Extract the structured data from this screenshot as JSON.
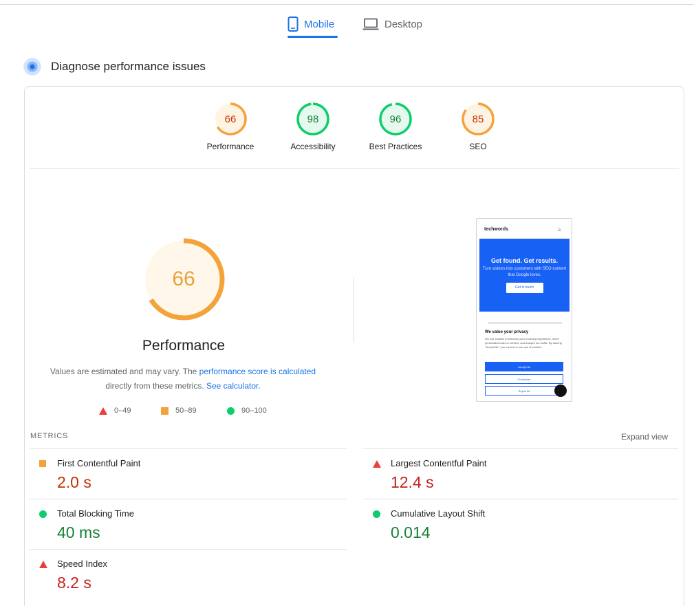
{
  "tabs": [
    {
      "label": "Mobile",
      "active": true,
      "icon": "smartphone-icon"
    },
    {
      "label": "Desktop",
      "active": false,
      "icon": "laptop-icon"
    }
  ],
  "section": {
    "title": "Diagnose performance issues",
    "icon": "diagnose-icon"
  },
  "category_scores": [
    {
      "label": "Performance",
      "score": 66,
      "color": "#f4a33a",
      "text_color": "#c33300"
    },
    {
      "label": "Accessibility",
      "score": 98,
      "color": "#0cce6b",
      "text_color": "#188038"
    },
    {
      "label": "Best Practices",
      "score": 96,
      "color": "#0cce6b",
      "text_color": "#188038"
    },
    {
      "label": "SEO",
      "score": 85,
      "color": "#f4a33a",
      "text_color": "#c33300"
    }
  ],
  "performance": {
    "score": 66,
    "title": "Performance",
    "desc_prefix": "Values are estimated and may vary. The ",
    "link1": "performance score is calculated",
    "desc_mid": "directly from these metrics. ",
    "link2": "See calculator.",
    "legend": [
      {
        "shape": "triangle",
        "range": "0–49",
        "color": "#eb3f3f"
      },
      {
        "shape": "square",
        "range": "50–89",
        "color": "#f4a33a"
      },
      {
        "shape": "circle",
        "range": "90–100",
        "color": "#0cce6b"
      }
    ]
  },
  "preview": {
    "logo": "techwords",
    "hero_heading": "Get found. Get results.",
    "hero_text": "Turn visitors into customers with SEO content that Google loves.",
    "hero_button": "Get in touch",
    "privacy_title": "We value your privacy",
    "privacy_text": "We use cookies to enhance your browsing experience, serve personalized ads or content, and analyze our traffic. By clicking \"Accept All\", you consent to our use of cookies.",
    "accept": "Accept All",
    "customize": "Customize",
    "reject": "Reject All"
  },
  "metrics": {
    "label": "METRICS",
    "expand": "Expand view",
    "items": [
      {
        "name": "First Contentful Paint",
        "value": "2.0 s",
        "rating": "average"
      },
      {
        "name": "Largest Contentful Paint",
        "value": "12.4 s",
        "rating": "poor"
      },
      {
        "name": "Total Blocking Time",
        "value": "40 ms",
        "rating": "good"
      },
      {
        "name": "Cumulative Layout Shift",
        "value": "0.014",
        "rating": "good"
      },
      {
        "name": "Speed Index",
        "value": "8.2 s",
        "rating": "poor"
      }
    ]
  }
}
